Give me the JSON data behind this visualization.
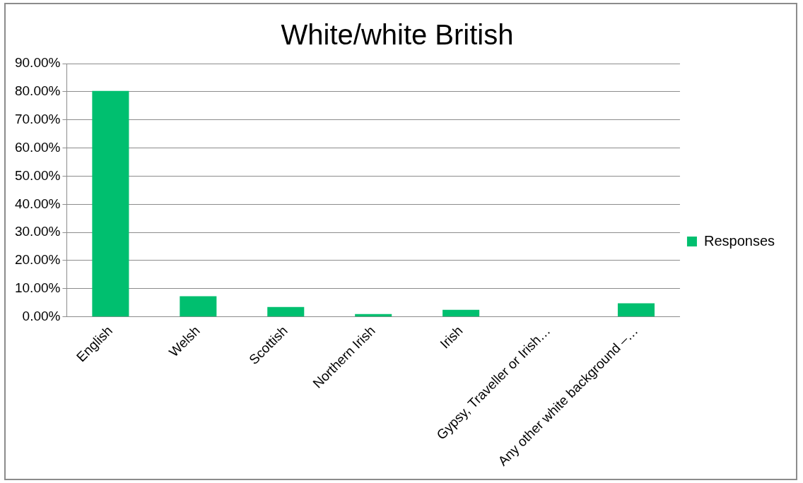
{
  "chart_data": {
    "type": "bar",
    "title": "White/white British",
    "categories": [
      "English",
      "Welsh",
      "Scottish",
      "Northern Irish",
      "Irish",
      "Gypsy, Traveller or Irish…",
      "Any other white background –…"
    ],
    "series": [
      {
        "name": "Responses",
        "color": "#00bf6f",
        "values": [
          80.3,
          7.3,
          3.5,
          1.0,
          2.5,
          0,
          4.8
        ]
      }
    ],
    "ylim": [
      0,
      90
    ],
    "yticks": [
      {
        "value": 0,
        "label": "0.00%"
      },
      {
        "value": 10,
        "label": "10.00%"
      },
      {
        "value": 20,
        "label": "20.00%"
      },
      {
        "value": 30,
        "label": "30.00%"
      },
      {
        "value": 40,
        "label": "40.00%"
      },
      {
        "value": 50,
        "label": "50.00%"
      },
      {
        "value": 60,
        "label": "60.00%"
      },
      {
        "value": 70,
        "label": "70.00%"
      },
      {
        "value": 80,
        "label": "80.00%"
      },
      {
        "value": 90,
        "label": "90.00%"
      }
    ],
    "grid": "y",
    "legend": "right"
  }
}
